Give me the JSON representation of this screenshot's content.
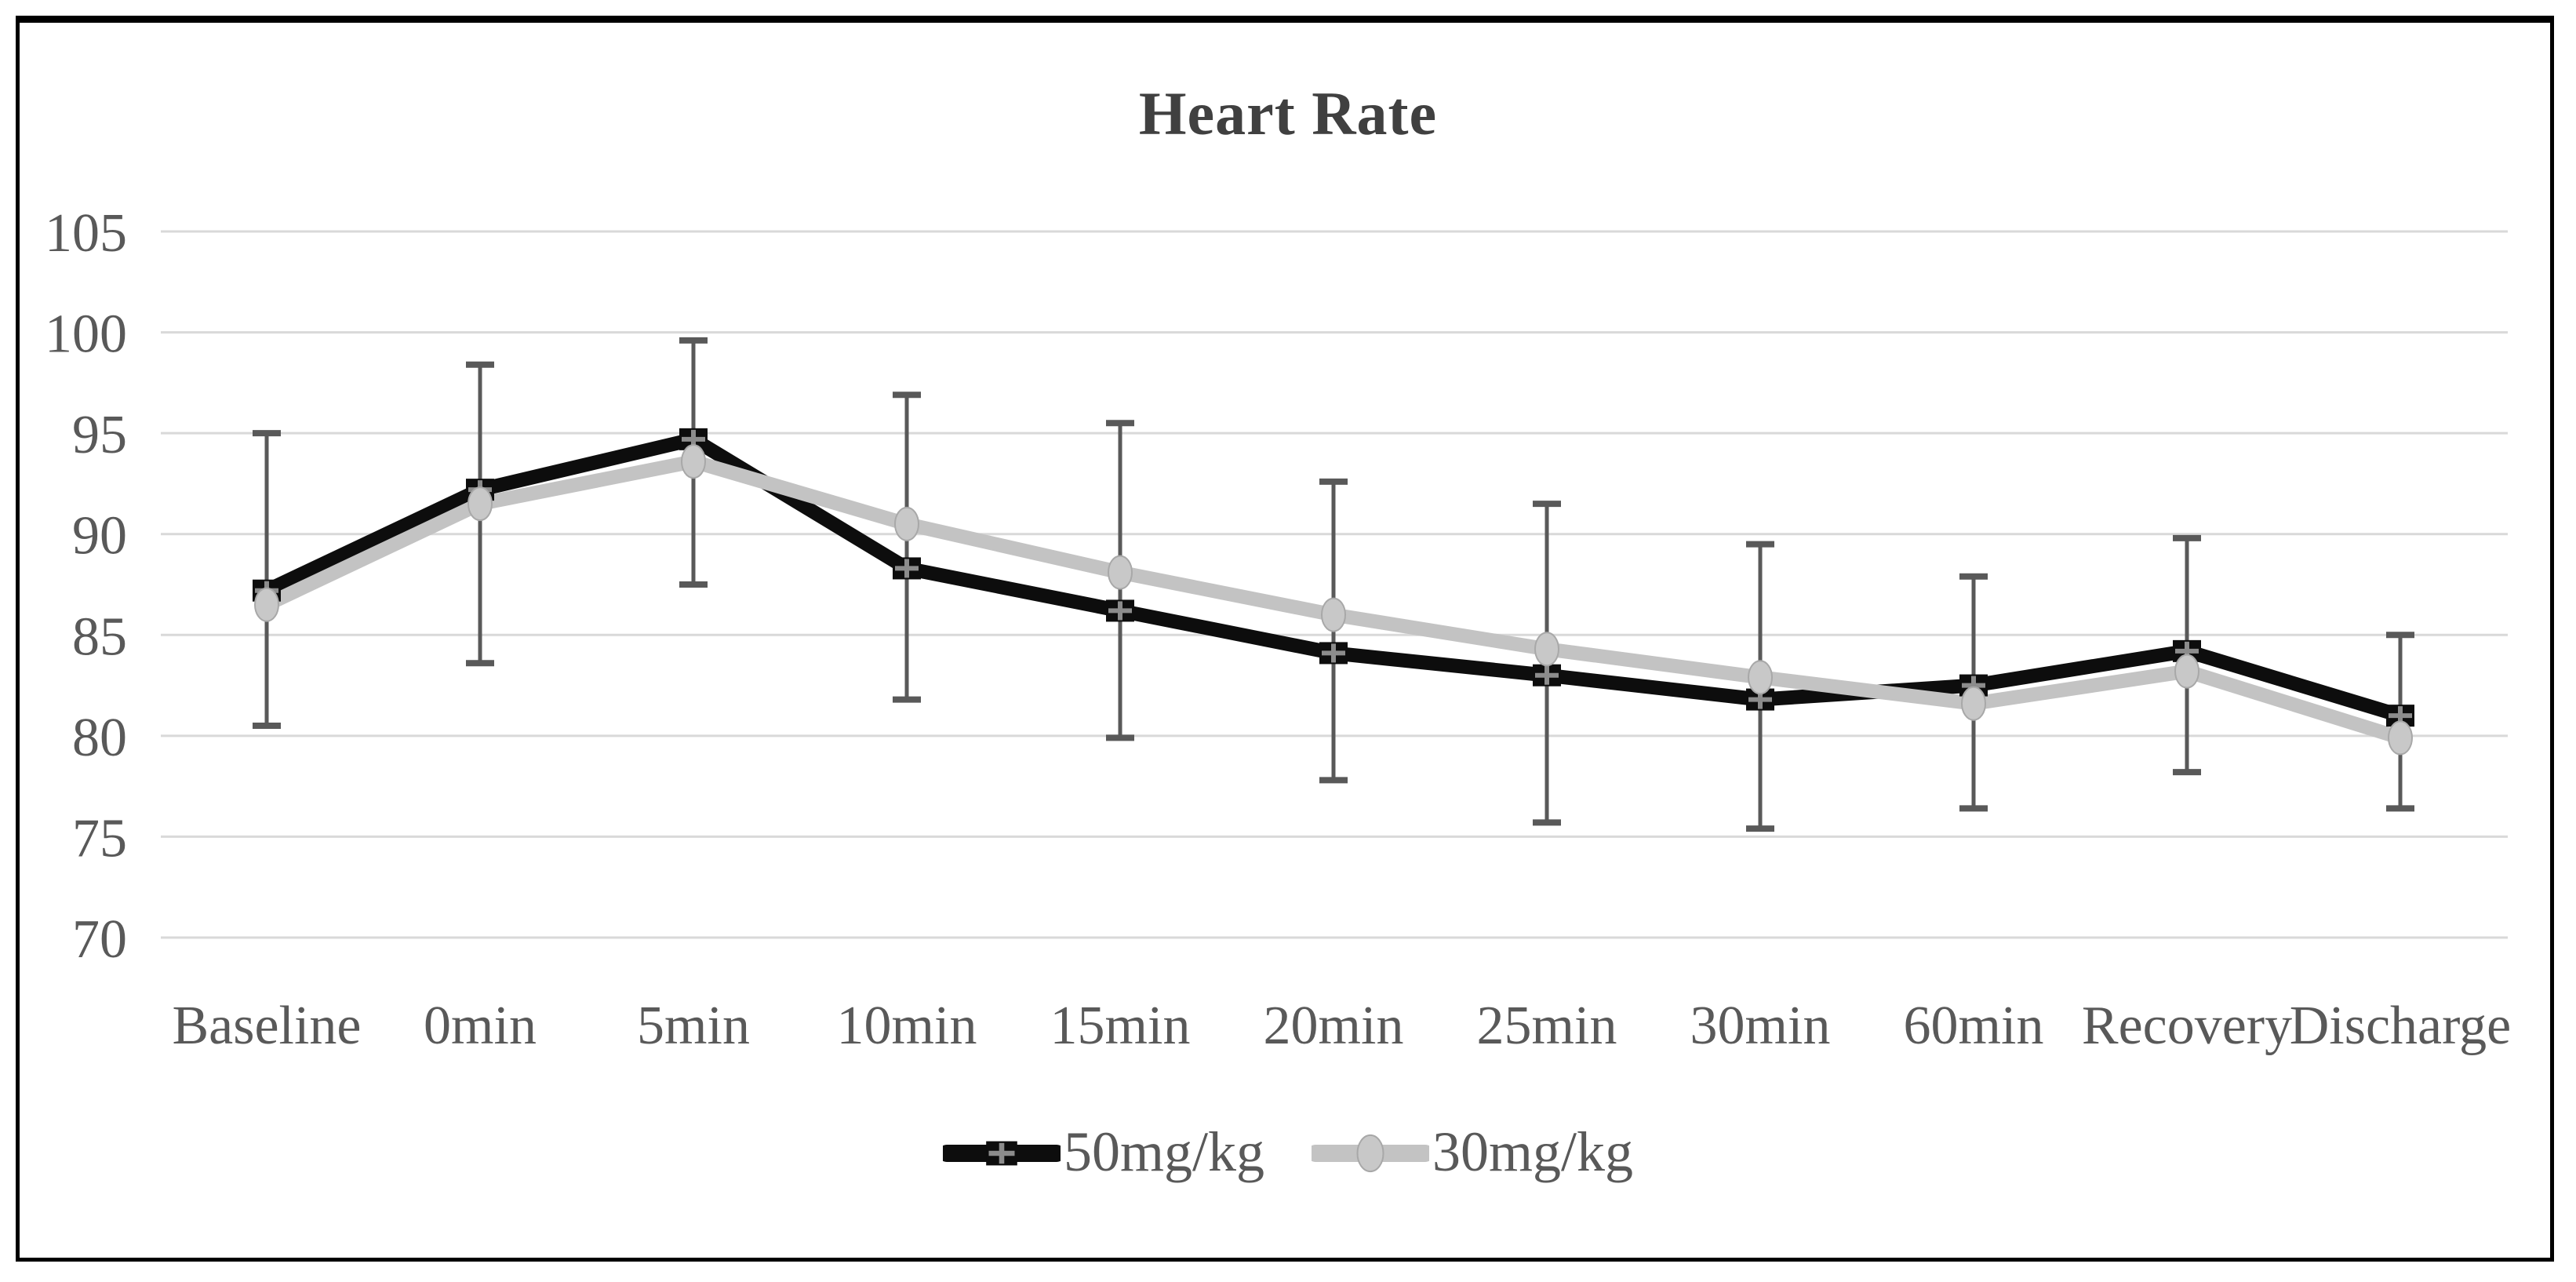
{
  "figure": {
    "background": "#ffffff",
    "border_color": "#000000"
  },
  "chart_data": {
    "type": "line",
    "title": "Heart Rate",
    "title_color": "#404040",
    "xlabel": "",
    "ylabel": "",
    "ylim": [
      70,
      105
    ],
    "yticks": [
      105,
      100,
      95,
      90,
      85,
      80,
      75,
      70
    ],
    "grid": true,
    "gridline_color": "#d9d9d9",
    "tick_label_color": "#595959",
    "legend_position": "bottom",
    "categories": [
      "Baseline",
      "0min",
      "5min",
      "10min",
      "15min",
      "20min",
      "25min",
      "30min",
      "60min",
      "Recovery",
      "Discharge"
    ],
    "series": [
      {
        "name": "50mg/kg",
        "color": "#0d0d0d",
        "marker": "square-plus",
        "marker_fill": "#0d0d0d",
        "marker_inner_color": "#8c8c8c",
        "values": [
          87.2,
          92.2,
          94.7,
          88.3,
          86.2,
          84.1,
          83.0,
          81.8,
          82.5,
          84.2,
          81.0
        ]
      },
      {
        "name": "30mg/kg",
        "color": "#c3c3c3",
        "marker": "ellipse",
        "marker_fill": "#c8c8c8",
        "marker_outline": "#a8a8a8",
        "values": [
          86.5,
          91.5,
          93.6,
          90.5,
          88.1,
          86.0,
          84.3,
          82.9,
          81.6,
          83.2,
          79.9
        ]
      }
    ],
    "error_bars": {
      "color": "#595959",
      "top": [
        95.0,
        98.4,
        99.6,
        96.9,
        95.5,
        92.6,
        91.5,
        89.5,
        87.9,
        89.8,
        85.0
      ],
      "bottom": [
        80.5,
        83.6,
        87.5,
        81.8,
        79.9,
        77.8,
        75.7,
        75.4,
        76.4,
        78.2,
        76.4
      ]
    }
  }
}
